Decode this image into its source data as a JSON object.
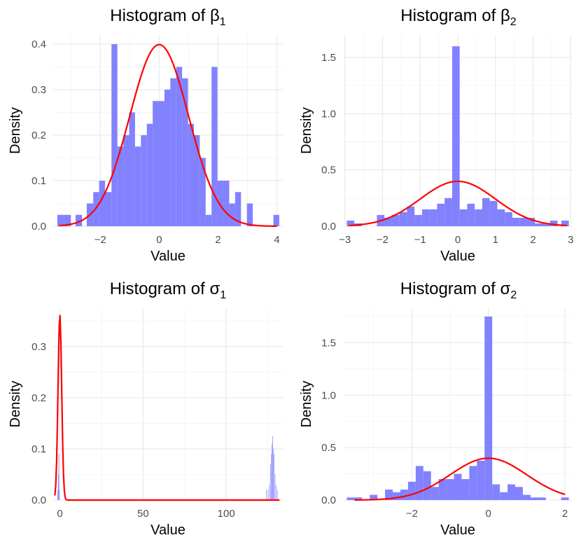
{
  "chart_data": [
    {
      "type": "bar",
      "title": "Histogram of β₁",
      "title_main": "Histogram of β",
      "title_sub": "1",
      "xlabel": "Value",
      "ylabel": "Density",
      "xlim": [
        -3.6,
        4.2
      ],
      "ylim": [
        0,
        0.42
      ],
      "xticks": [
        -2,
        0,
        2,
        4
      ],
      "xtick_labels": [
        "−2",
        "0",
        "2",
        "4"
      ],
      "yticks": [
        0,
        0.1,
        0.2,
        0.3,
        0.4
      ],
      "ytick_labels": [
        "0.0",
        "0.1",
        "0.2",
        "0.3",
        "0.4"
      ],
      "grid": true,
      "bar_color": "#7b7bff",
      "curve_color": "#ff0000",
      "bins": [
        {
          "x0": -3.46,
          "x1": -3.23,
          "density": 0.025
        },
        {
          "x0": -3.23,
          "x1": -3.0,
          "density": 0.025
        },
        {
          "x0": -2.84,
          "x1": -2.62,
          "density": 0.025
        },
        {
          "x0": -2.46,
          "x1": -2.24,
          "density": 0.05
        },
        {
          "x0": -2.24,
          "x1": -2.04,
          "density": 0.075
        },
        {
          "x0": -2.04,
          "x1": -1.84,
          "density": 0.1
        },
        {
          "x0": -1.84,
          "x1": -1.62,
          "density": 0.075
        },
        {
          "x0": -1.62,
          "x1": -1.42,
          "density": 0.4
        },
        {
          "x0": -1.42,
          "x1": -1.22,
          "density": 0.175
        },
        {
          "x0": -1.22,
          "x1": -1.02,
          "density": 0.2
        },
        {
          "x0": -1.02,
          "x1": -0.82,
          "density": 0.25
        },
        {
          "x0": -0.82,
          "x1": -0.62,
          "density": 0.175
        },
        {
          "x0": -0.62,
          "x1": -0.42,
          "density": 0.2
        },
        {
          "x0": -0.42,
          "x1": -0.22,
          "density": 0.225
        },
        {
          "x0": -0.22,
          "x1": -0.02,
          "density": 0.275
        },
        {
          "x0": -0.02,
          "x1": 0.18,
          "density": 0.275
        },
        {
          "x0": 0.18,
          "x1": 0.38,
          "density": 0.3
        },
        {
          "x0": 0.38,
          "x1": 0.58,
          "density": 0.325
        },
        {
          "x0": 0.58,
          "x1": 0.78,
          "density": 0.35
        },
        {
          "x0": 0.78,
          "x1": 0.98,
          "density": 0.325
        },
        {
          "x0": 0.98,
          "x1": 1.18,
          "density": 0.225
        },
        {
          "x0": 1.18,
          "x1": 1.38,
          "density": 0.2
        },
        {
          "x0": 1.38,
          "x1": 1.58,
          "density": 0.15
        },
        {
          "x0": 1.58,
          "x1": 1.78,
          "density": 0.025
        },
        {
          "x0": 1.78,
          "x1": 1.98,
          "density": 0.35
        },
        {
          "x0": 1.98,
          "x1": 2.18,
          "density": 0.1
        },
        {
          "x0": 2.18,
          "x1": 2.38,
          "density": 0.1
        },
        {
          "x0": 2.38,
          "x1": 2.58,
          "density": 0.05
        },
        {
          "x0": 2.58,
          "x1": 2.78,
          "density": 0.075
        },
        {
          "x0": 2.98,
          "x1": 3.18,
          "density": 0.05
        },
        {
          "x0": 3.88,
          "x1": 4.08,
          "density": 0.025
        }
      ],
      "curve": {
        "mean": 0,
        "sd": 1,
        "from": -3.4,
        "to": 4.0
      }
    },
    {
      "type": "bar",
      "title": "Histogram of β₂",
      "title_main": "Histogram of β",
      "title_sub": "2",
      "xlabel": "Value",
      "ylabel": "Density",
      "xlim": [
        -3.05,
        3.05
      ],
      "ylim": [
        0,
        1.7
      ],
      "xticks": [
        -3,
        -2,
        -1,
        0,
        1,
        2,
        3
      ],
      "xtick_labels": [
        "−3",
        "−2",
        "−1",
        "0",
        "1",
        "2",
        "3"
      ],
      "yticks": [
        0,
        0.5,
        1.0,
        1.5
      ],
      "ytick_labels": [
        "0.0",
        "0.5",
        "1.0",
        "1.5"
      ],
      "grid": true,
      "bar_color": "#7b7bff",
      "curve_color": "#ff0000",
      "bins": [
        {
          "x0": -2.95,
          "x1": -2.75,
          "density": 0.05
        },
        {
          "x0": -2.75,
          "x1": -2.55,
          "density": 0.025
        },
        {
          "x0": -2.15,
          "x1": -1.95,
          "density": 0.1
        },
        {
          "x0": -1.95,
          "x1": -1.75,
          "density": 0.075
        },
        {
          "x0": -1.75,
          "x1": -1.55,
          "density": 0.1
        },
        {
          "x0": -1.55,
          "x1": -1.35,
          "density": 0.125
        },
        {
          "x0": -1.35,
          "x1": -1.15,
          "density": 0.175
        },
        {
          "x0": -1.15,
          "x1": -0.95,
          "density": 0.1
        },
        {
          "x0": -0.95,
          "x1": -0.75,
          "density": 0.15
        },
        {
          "x0": -0.75,
          "x1": -0.55,
          "density": 0.15
        },
        {
          "x0": -0.55,
          "x1": -0.35,
          "density": 0.2
        },
        {
          "x0": -0.35,
          "x1": -0.15,
          "density": 0.25
        },
        {
          "x0": -0.15,
          "x1": 0.05,
          "density": 1.6
        },
        {
          "x0": 0.05,
          "x1": 0.25,
          "density": 0.15
        },
        {
          "x0": 0.25,
          "x1": 0.45,
          "density": 0.2
        },
        {
          "x0": 0.45,
          "x1": 0.65,
          "density": 0.15
        },
        {
          "x0": 0.65,
          "x1": 0.85,
          "density": 0.25
        },
        {
          "x0": 0.85,
          "x1": 1.05,
          "density": 0.225
        },
        {
          "x0": 1.05,
          "x1": 1.25,
          "density": 0.15
        },
        {
          "x0": 1.25,
          "x1": 1.45,
          "density": 0.125
        },
        {
          "x0": 1.45,
          "x1": 1.65,
          "density": 0.075
        },
        {
          "x0": 1.65,
          "x1": 1.85,
          "density": 0.075
        },
        {
          "x0": 1.85,
          "x1": 2.05,
          "density": 0.075
        },
        {
          "x0": 2.05,
          "x1": 2.25,
          "density": 0.025
        },
        {
          "x0": 2.25,
          "x1": 2.45,
          "density": 0.025
        },
        {
          "x0": 2.45,
          "x1": 2.65,
          "density": 0.05
        },
        {
          "x0": 2.75,
          "x1": 2.95,
          "density": 0.05
        }
      ],
      "curve": {
        "mean": 0,
        "sd": 1,
        "from": -2.9,
        "to": 2.9
      }
    },
    {
      "type": "bar",
      "title": "Histogram of σ₁",
      "title_main": "Histogram of σ",
      "title_sub": "1",
      "xlabel": "Value",
      "ylabel": "Density",
      "xlim": [
        -4,
        134
      ],
      "ylim": [
        0,
        0.375
      ],
      "xticks": [
        0,
        50,
        100
      ],
      "xtick_labels": [
        "0",
        "50",
        "100"
      ],
      "yticks": [
        0,
        0.1,
        0.2,
        0.3
      ],
      "ytick_labels": [
        "0.0",
        "0.1",
        "0.2",
        "0.3"
      ],
      "grid": true,
      "bar_color": "#7b7bff",
      "curve_color": "#ff0000",
      "bins": [
        {
          "x0": -1.4,
          "x1": -1.1,
          "density": 0.02
        },
        {
          "x0": -1.1,
          "x1": -0.8,
          "density": 0.05
        },
        {
          "x0": -0.8,
          "x1": -0.5,
          "density": 0.09
        },
        {
          "x0": -0.5,
          "x1": -0.2,
          "density": 0.02
        },
        {
          "x0": 124.0,
          "x1": 124.3,
          "density": 0.02
        },
        {
          "x0": 125.0,
          "x1": 125.3,
          "density": 0.02
        },
        {
          "x0": 125.8,
          "x1": 126.1,
          "density": 0.03
        },
        {
          "x0": 126.4,
          "x1": 126.7,
          "density": 0.07
        },
        {
          "x0": 127.0,
          "x1": 127.3,
          "density": 0.09
        },
        {
          "x0": 127.4,
          "x1": 127.7,
          "density": 0.11
        },
        {
          "x0": 127.8,
          "x1": 128.1,
          "density": 0.125
        },
        {
          "x0": 128.2,
          "x1": 128.5,
          "density": 0.1
        },
        {
          "x0": 128.6,
          "x1": 128.9,
          "density": 0.09
        },
        {
          "x0": 129.2,
          "x1": 129.5,
          "density": 0.05
        },
        {
          "x0": 129.9,
          "x1": 130.2,
          "density": 0.03
        },
        {
          "x0": 130.6,
          "x1": 130.9,
          "density": 0.02
        }
      ],
      "curve": {
        "mean": 0,
        "sd": 1.1,
        "from": -3,
        "to": 132
      }
    },
    {
      "type": "bar",
      "title": "Histogram of σ₂",
      "title_main": "Histogram of σ",
      "title_sub": "2",
      "xlabel": "Value",
      "ylabel": "Density",
      "xlim": [
        -3.8,
        2.2
      ],
      "ylim": [
        0,
        1.83
      ],
      "xticks": [
        -2,
        0,
        2
      ],
      "xtick_labels": [
        "−2",
        "0",
        "2"
      ],
      "yticks": [
        0,
        0.5,
        1.0,
        1.5
      ],
      "ytick_labels": [
        "0.0",
        "0.5",
        "1.0",
        "1.5"
      ],
      "grid": true,
      "bar_color": "#7b7bff",
      "curve_color": "#ff0000",
      "bins": [
        {
          "x0": -3.7,
          "x1": -3.5,
          "density": 0.025
        },
        {
          "x0": -3.5,
          "x1": -3.3,
          "density": 0.025
        },
        {
          "x0": -3.1,
          "x1": -2.9,
          "density": 0.05
        },
        {
          "x0": -2.7,
          "x1": -2.5,
          "density": 0.1
        },
        {
          "x0": -2.5,
          "x1": -2.3,
          "density": 0.075
        },
        {
          "x0": -2.3,
          "x1": -2.1,
          "density": 0.1
        },
        {
          "x0": -2.1,
          "x1": -1.9,
          "density": 0.175
        },
        {
          "x0": -1.9,
          "x1": -1.7,
          "density": 0.325
        },
        {
          "x0": -1.7,
          "x1": -1.5,
          "density": 0.275
        },
        {
          "x0": -1.5,
          "x1": -1.3,
          "density": 0.125
        },
        {
          "x0": -1.3,
          "x1": -1.1,
          "density": 0.2
        },
        {
          "x0": -1.1,
          "x1": -0.9,
          "density": 0.2
        },
        {
          "x0": -0.9,
          "x1": -0.7,
          "density": 0.25
        },
        {
          "x0": -0.7,
          "x1": -0.5,
          "density": 0.2
        },
        {
          "x0": -0.5,
          "x1": -0.3,
          "density": 0.325
        },
        {
          "x0": -0.3,
          "x1": -0.1,
          "density": 0.375
        },
        {
          "x0": -0.1,
          "x1": 0.1,
          "density": 1.75
        },
        {
          "x0": 0.1,
          "x1": 0.3,
          "density": 0.15
        },
        {
          "x0": 0.3,
          "x1": 0.5,
          "density": 0.075
        },
        {
          "x0": 0.5,
          "x1": 0.7,
          "density": 0.15
        },
        {
          "x0": 0.7,
          "x1": 0.9,
          "density": 0.125
        },
        {
          "x0": 0.9,
          "x1": 1.1,
          "density": 0.05
        },
        {
          "x0": 1.1,
          "x1": 1.3,
          "density": 0.025
        },
        {
          "x0": 1.3,
          "x1": 1.5,
          "density": 0.025
        },
        {
          "x0": 1.9,
          "x1": 2.1,
          "density": 0.025
        }
      ],
      "curve": {
        "mean": 0,
        "sd": 1,
        "from": -3.5,
        "to": 2.0
      }
    }
  ]
}
